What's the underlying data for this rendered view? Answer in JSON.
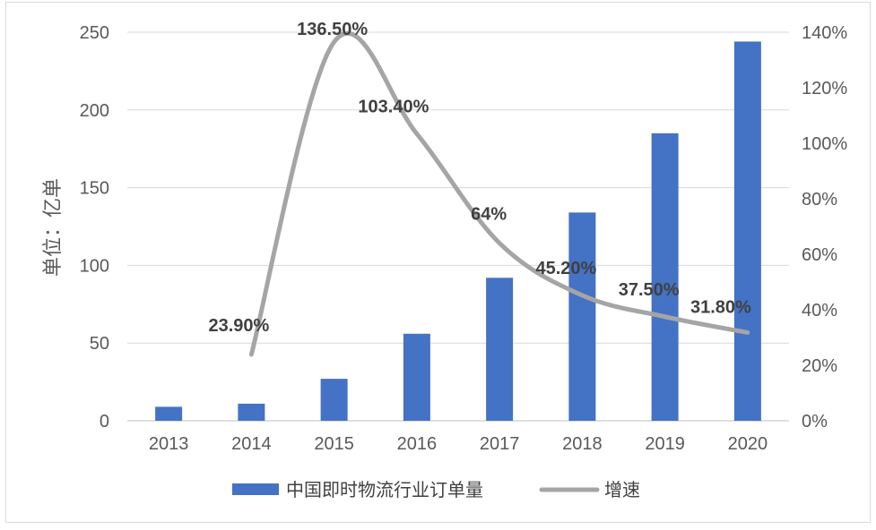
{
  "chart_data": {
    "type": "bar",
    "title": "",
    "categories": [
      "2013",
      "2014",
      "2015",
      "2016",
      "2017",
      "2018",
      "2019",
      "2020"
    ],
    "series": [
      {
        "name": "中国即时物流行业订单量",
        "type": "bar",
        "axis": "left",
        "color": "#4472c4",
        "values": [
          9,
          11,
          27,
          56,
          92,
          134,
          185,
          244
        ]
      },
      {
        "name": "增速",
        "type": "line",
        "axis": "right",
        "color": "#a5a5a5",
        "x": [
          "2014",
          "2015",
          "2016",
          "2017",
          "2018",
          "2019",
          "2020"
        ],
        "values": [
          23.9,
          136.5,
          103.4,
          64,
          45.2,
          37.5,
          31.8
        ],
        "labels": [
          "23.90%",
          "136.50%",
          "103.40%",
          "64%",
          "45.20%",
          "37.50%",
          "31.80%"
        ]
      }
    ],
    "ylabel": "单位：亿单",
    "ylim": [
      0,
      250
    ],
    "yticks": [
      "0",
      "50",
      "100",
      "150",
      "200",
      "250"
    ],
    "y2lim": [
      0,
      140
    ],
    "y2ticks": [
      "0%",
      "20%",
      "40%",
      "60%",
      "80%",
      "100%",
      "120%",
      "140%"
    ],
    "grid": true,
    "legend_position": "bottom"
  }
}
